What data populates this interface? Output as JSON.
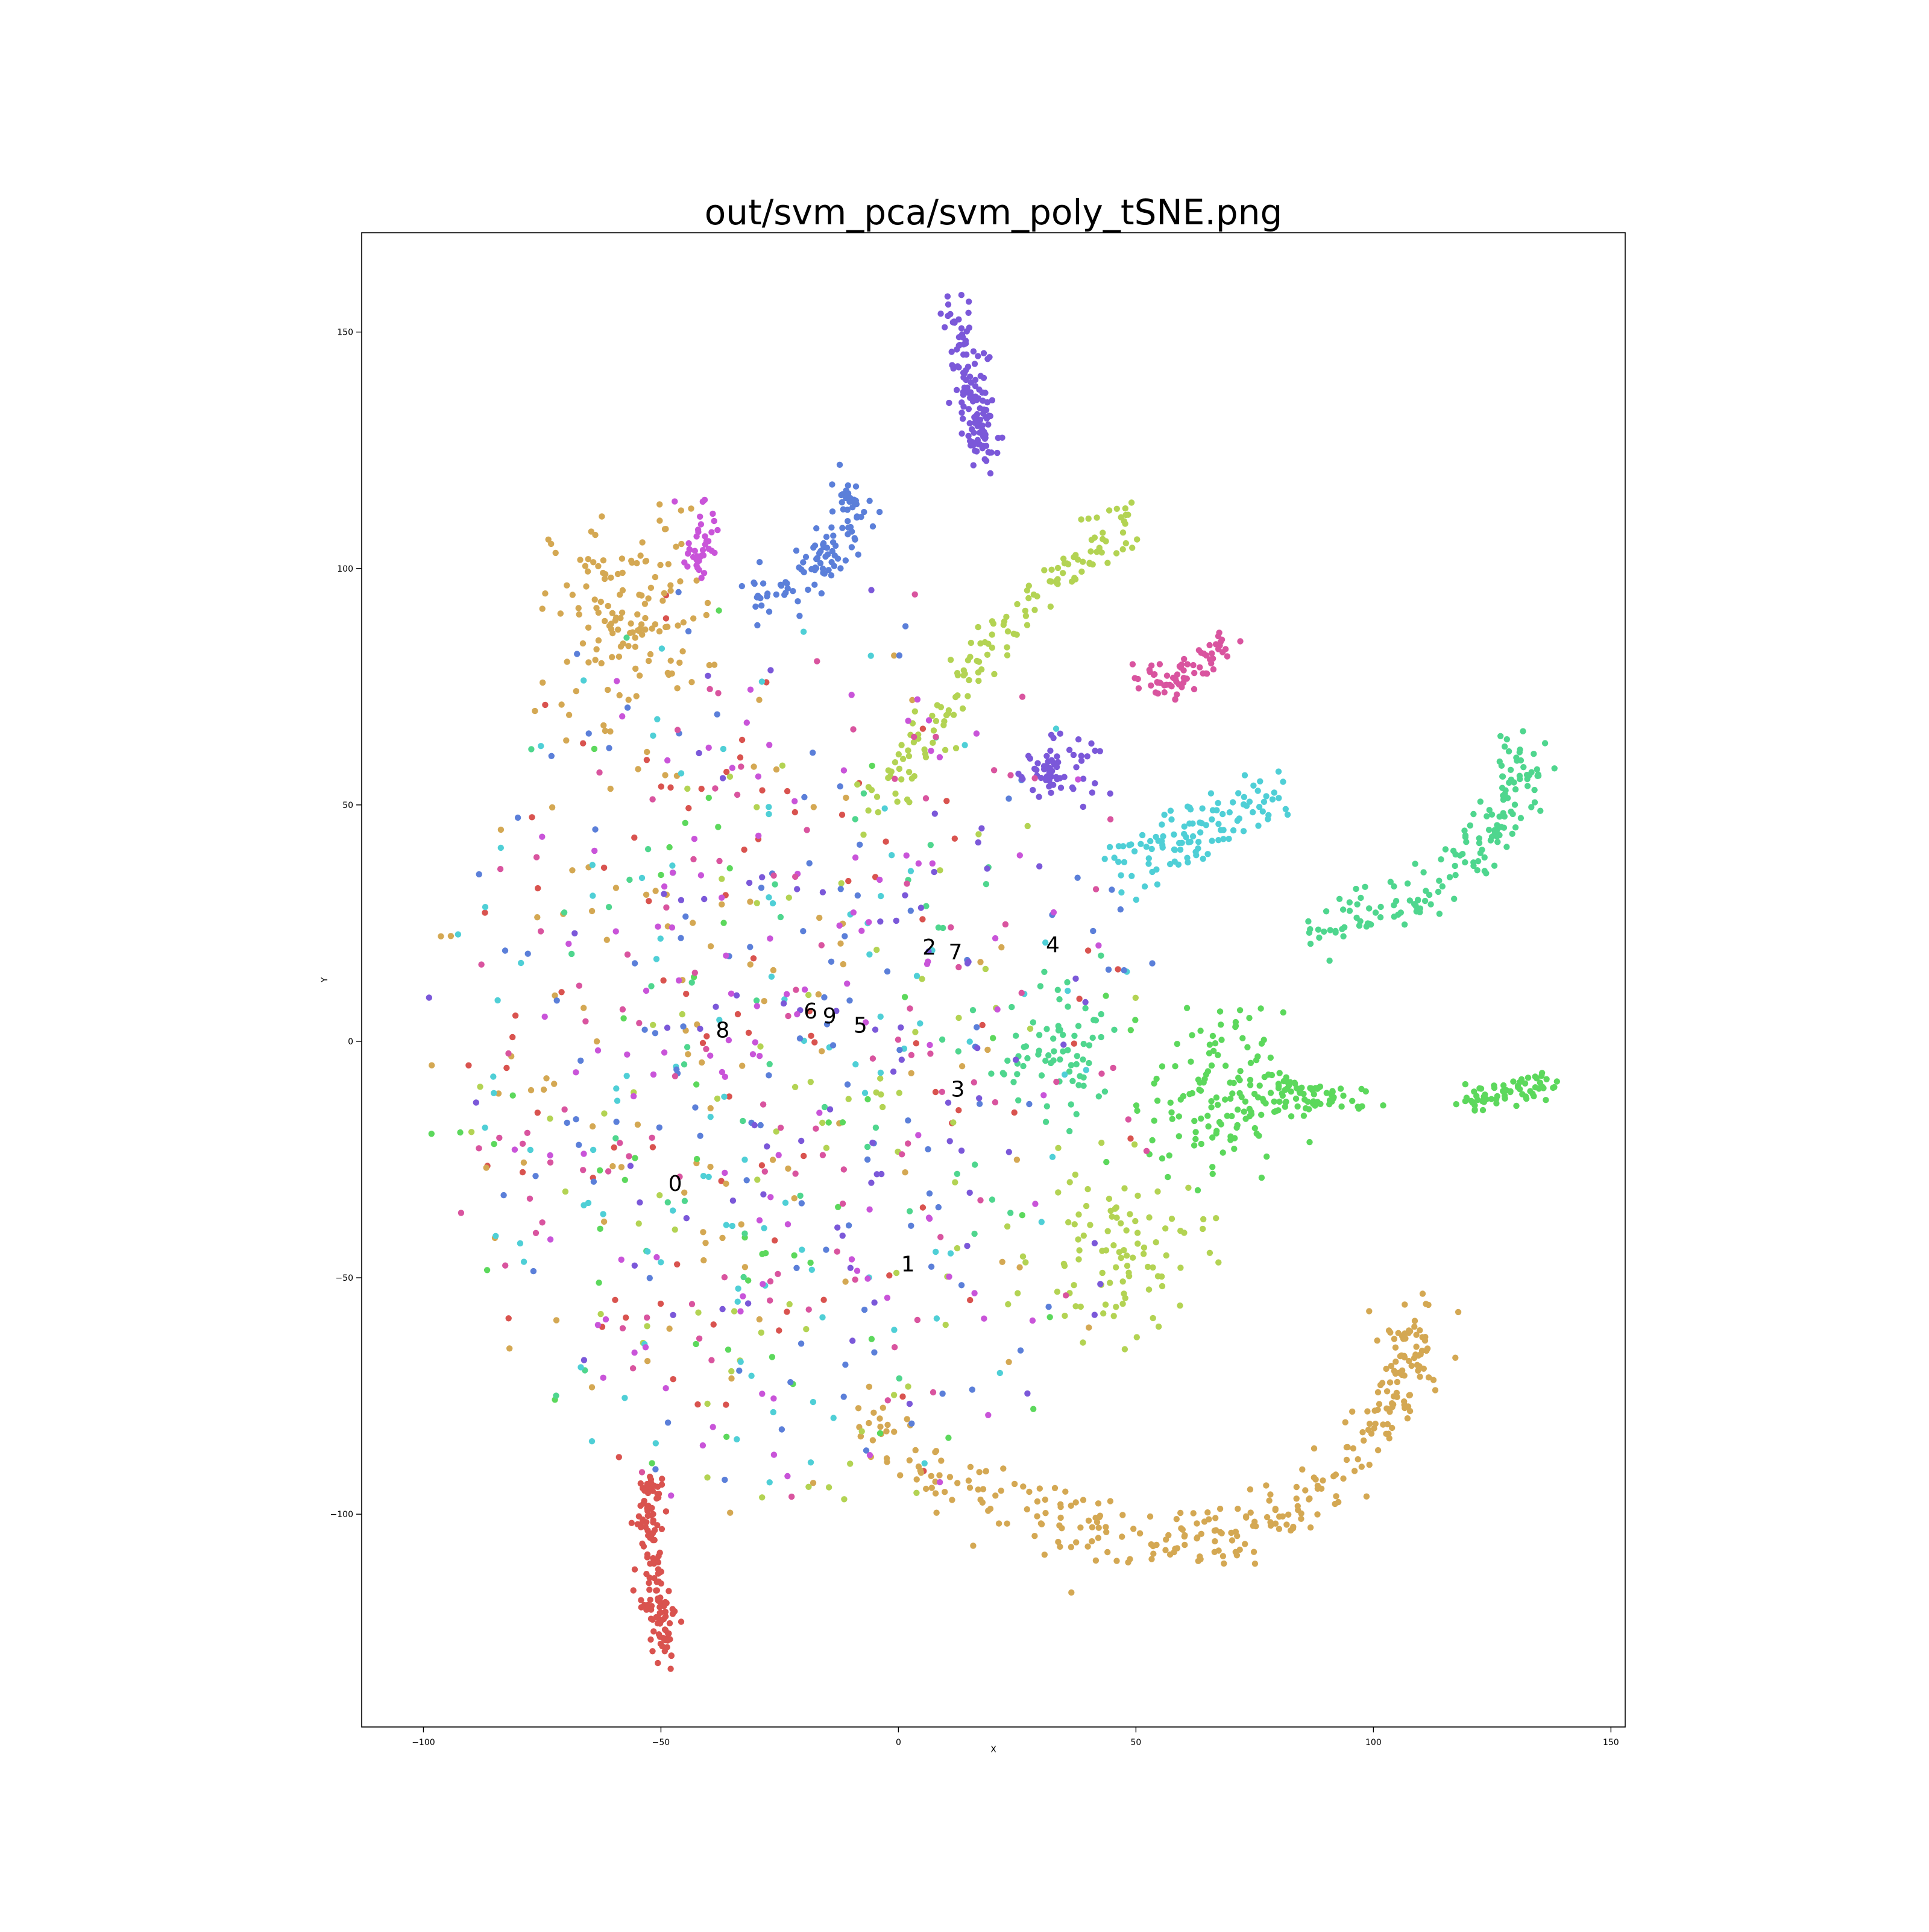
{
  "chart_data": {
    "type": "scatter",
    "title": "out/svm_pca/svm_poly_tSNE.png",
    "xlabel": "X",
    "ylabel": "Y",
    "xlim": [
      -113,
      153
    ],
    "ylim": [
      -145,
      171
    ],
    "xticks": [
      -100,
      -50,
      0,
      50,
      100,
      150
    ],
    "yticks": [
      150,
      100,
      50,
      0,
      -50,
      -100
    ],
    "xtick_labels": [
      "−100",
      "−50",
      "0",
      "50",
      "100",
      "150"
    ],
    "ytick_labels": [
      "150",
      "100",
      "50",
      "0",
      "−50",
      "−100"
    ],
    "grid": false,
    "legend": "none",
    "cluster_labels": [
      {
        "text": "0",
        "x": -47,
        "y": -30
      },
      {
        "text": "1",
        "x": 2,
        "y": -47
      },
      {
        "text": "2",
        "x": 6.5,
        "y": 20
      },
      {
        "text": "7",
        "x": 12,
        "y": 19
      },
      {
        "text": "4",
        "x": 32.5,
        "y": 20.5
      },
      {
        "text": "6",
        "x": -18.5,
        "y": 6.5
      },
      {
        "text": "9",
        "x": -14.5,
        "y": 5.5
      },
      {
        "text": "5",
        "x": -8,
        "y": 3.5
      },
      {
        "text": "8",
        "x": -37,
        "y": 2.5
      },
      {
        "text": "3",
        "x": 12.5,
        "y": -10
      }
    ],
    "series": [
      {
        "color": "#d9534f",
        "clusters": [
          {
            "n": 140,
            "path": [
              [
                -52,
                -92
              ],
              [
                -53,
                -105
              ],
              [
                -51,
                -118
              ],
              [
                -48,
                -130
              ]
            ],
            "spread": 1.6
          },
          {
            "n": 90,
            "cx": -40,
            "cy": 0,
            "sx": 48,
            "sy": 62
          }
        ]
      },
      {
        "color": "#d4a853",
        "clusters": [
          {
            "n": 320,
            "path": [
              [
                -8,
                -78
              ],
              [
                15,
                -95
              ],
              [
                40,
                -103
              ],
              [
                62,
                -106
              ],
              [
                82,
                -100
              ],
              [
                97,
                -85
              ],
              [
                105,
                -72
              ],
              [
                110,
                -58
              ]
            ],
            "spread": 3.5
          },
          {
            "n": 130,
            "cx": -57,
            "cy": 90,
            "sx": 8,
            "sy": 11
          },
          {
            "n": 110,
            "cx": -50,
            "cy": 0,
            "sx": 42,
            "sy": 58
          }
        ]
      },
      {
        "color": "#b3d353",
        "clusters": [
          {
            "n": 150,
            "path": [
              [
                -5,
                50
              ],
              [
                8,
                68
              ],
              [
                20,
                85
              ],
              [
                35,
                100
              ],
              [
                50,
                111
              ]
            ],
            "spread": 2.6
          },
          {
            "n": 90,
            "cx": 47,
            "cy": -45,
            "sx": 9,
            "sy": 9
          },
          {
            "n": 80,
            "cx": -20,
            "cy": -20,
            "sx": 42,
            "sy": 50
          }
        ]
      },
      {
        "color": "#5cd85c",
        "clusters": [
          {
            "n": 130,
            "cx": 67,
            "cy": -12,
            "sx": 7,
            "sy": 9
          },
          {
            "n": 70,
            "path": [
              [
                78,
                -10
              ],
              [
                100,
                -13
              ]
            ],
            "spread": 2.2
          },
          {
            "n": 65,
            "path": [
              [
                119,
                -13
              ],
              [
                139,
                -8
              ]
            ],
            "spread": 1.3
          },
          {
            "n": 50,
            "cx": -30,
            "cy": -20,
            "sx": 40,
            "sy": 50
          }
        ]
      },
      {
        "color": "#4fd68e",
        "clusters": [
          {
            "n": 160,
            "path": [
              [
                88,
                23
              ],
              [
                108,
                30
              ],
              [
                123,
                40
              ],
              [
                129,
                52
              ],
              [
                132,
                62
              ]
            ],
            "spread": 2.8
          },
          {
            "n": 70,
            "cx": 33,
            "cy": -5,
            "sx": 8,
            "sy": 7
          },
          {
            "n": 50,
            "cx": -20,
            "cy": 0,
            "sx": 42,
            "sy": 50
          }
        ]
      },
      {
        "color": "#4fcfd6",
        "clusters": [
          {
            "n": 110,
            "path": [
              [
                47,
                37
              ],
              [
                58,
                42
              ],
              [
                68,
                47
              ],
              [
                80,
                53
              ]
            ],
            "spread": 3.0
          },
          {
            "n": 110,
            "cx": -25,
            "cy": -10,
            "sx": 45,
            "sy": 55
          }
        ]
      },
      {
        "color": "#5b7fd9",
        "clusters": [
          {
            "n": 110,
            "path": [
              [
                -30,
                92
              ],
              [
                -20,
                98
              ],
              [
                -14,
                105
              ],
              [
                -10,
                113
              ],
              [
                -11,
                119
              ]
            ],
            "spread": 2.6
          },
          {
            "n": 110,
            "cx": -25,
            "cy": 5,
            "sx": 42,
            "sy": 52
          }
        ]
      },
      {
        "color": "#7b58d9",
        "clusters": [
          {
            "n": 130,
            "path": [
              [
                12,
                155
              ],
              [
                15,
                140
              ],
              [
                17,
                130
              ],
              [
                19,
                122
              ]
            ],
            "spread": 1.8
          },
          {
            "n": 60,
            "cx": 33,
            "cy": 58,
            "sx": 4,
            "sy": 3
          },
          {
            "n": 80,
            "cx": -10,
            "cy": -10,
            "sx": 40,
            "sy": 50
          }
        ]
      },
      {
        "color": "#c954d9",
        "clusters": [
          {
            "n": 40,
            "path": [
              [
                -42,
                114
              ],
              [
                -41,
                104
              ],
              [
                -43,
                100
              ]
            ],
            "spread": 1.7
          },
          {
            "n": 120,
            "cx": -25,
            "cy": 0,
            "sx": 42,
            "sy": 55
          }
        ]
      },
      {
        "color": "#d9549f",
        "clusters": [
          {
            "n": 70,
            "path": [
              [
                51,
                78
              ],
              [
                58,
                75
              ],
              [
                63,
                80
              ],
              [
                70,
                84
              ]
            ],
            "spread": 1.6
          },
          {
            "n": 110,
            "cx": -30,
            "cy": 0,
            "sx": 42,
            "sy": 55
          }
        ]
      }
    ]
  }
}
